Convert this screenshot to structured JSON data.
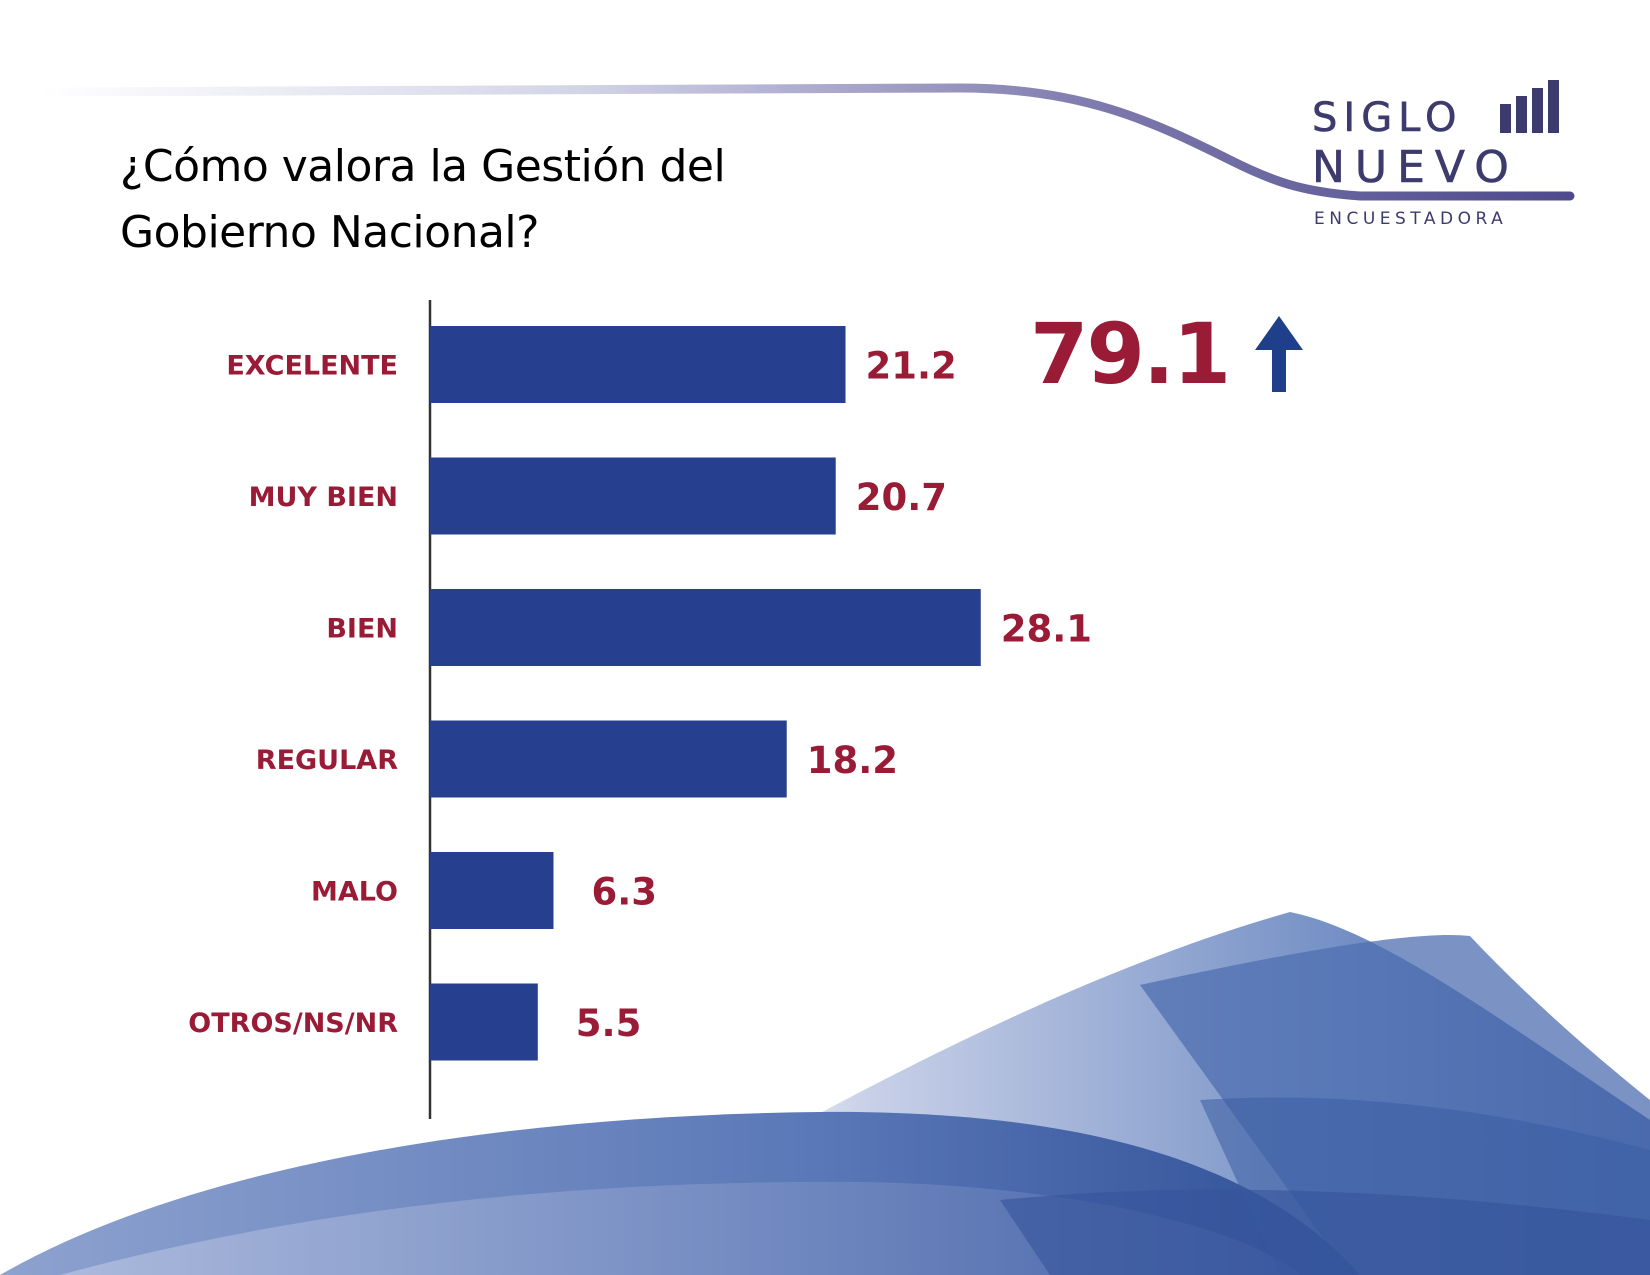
{
  "title_lines": [
    "¿Cómo valora la Gestión del",
    "Gobierno Nacional?"
  ],
  "logo": {
    "line1": "SIGLO",
    "line2": "NUEVO",
    "line3": "ENCUESTADORA",
    "icon": "bar-chart-icon",
    "color": "#3d3b6e"
  },
  "highlight": {
    "value": "79.1",
    "icon": "arrow-up-icon",
    "color": "#9a1b35",
    "arrow_color": "#1f3f8a"
  },
  "colors": {
    "bar": "#263f8e",
    "label": "#9a1b35",
    "axis": "#333333"
  },
  "chart_data": {
    "type": "bar",
    "orientation": "horizontal",
    "title": "¿Cómo valora la Gestión del Gobierno Nacional?",
    "categories": [
      "EXCELENTE",
      "MUY BIEN",
      "BIEN",
      "REGULAR",
      "MALO",
      "OTROS/NS/NR"
    ],
    "values": [
      21.2,
      20.7,
      28.1,
      18.2,
      6.3,
      5.5
    ],
    "value_labels": [
      "21.2",
      "20.7",
      "28.1",
      "18.2",
      "6.3",
      "5.5"
    ],
    "xlabel": "",
    "ylabel": "",
    "grid": false,
    "legend": "none"
  }
}
